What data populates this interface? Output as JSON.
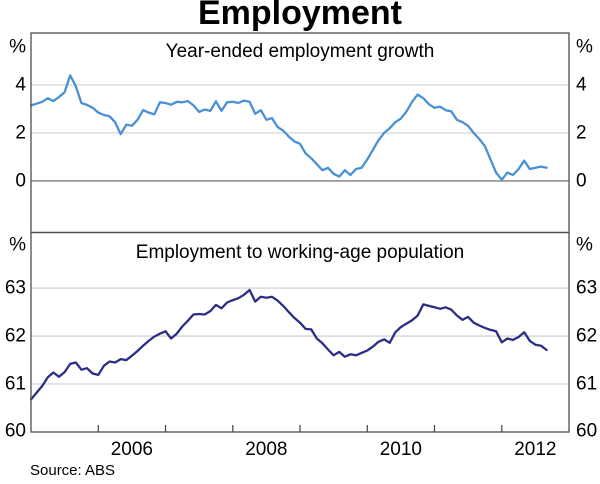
{
  "page": {
    "title": "Employment",
    "source": "Source: ABS"
  },
  "chart_data": {
    "type": "line",
    "title": "Employment",
    "x": {
      "frequency": "monthly",
      "start": "2005-01",
      "end": "2012-09",
      "axis_range_years": [
        2005,
        2013
      ],
      "year_tick_marks": [
        2006,
        2007,
        2008,
        2009,
        2010,
        2011,
        2012
      ],
      "year_labels": [
        "2006",
        "2008",
        "2010",
        "2012"
      ]
    },
    "colors": {
      "grid": "#c9c9c9",
      "frame": "#4f4f4f",
      "zero_line": "#7d7d7d"
    },
    "panels": [
      {
        "title": "Year-ended employment growth",
        "unit": "%",
        "ylim": [
          -2.15,
          6.17
        ],
        "yticks": [
          0,
          2,
          4
        ],
        "zero_line": true,
        "line_color": "#4a90d5",
        "values": [
          3.15,
          3.22,
          3.3,
          3.45,
          3.33,
          3.5,
          3.7,
          4.4,
          3.95,
          3.25,
          3.17,
          3.05,
          2.85,
          2.75,
          2.7,
          2.45,
          1.95,
          2.35,
          2.3,
          2.55,
          2.95,
          2.85,
          2.78,
          3.28,
          3.25,
          3.18,
          3.3,
          3.28,
          3.33,
          3.15,
          2.88,
          2.98,
          2.92,
          3.32,
          2.92,
          3.28,
          3.3,
          3.25,
          3.35,
          3.3,
          2.8,
          2.95,
          2.55,
          2.62,
          2.25,
          2.1,
          1.85,
          1.65,
          1.55,
          1.15,
          0.95,
          0.7,
          0.45,
          0.55,
          0.3,
          0.18,
          0.45,
          0.25,
          0.5,
          0.55,
          0.9,
          1.3,
          1.7,
          2.0,
          2.2,
          2.45,
          2.6,
          2.9,
          3.3,
          3.6,
          3.45,
          3.2,
          3.05,
          3.1,
          2.95,
          2.9,
          2.55,
          2.45,
          2.3,
          2.0,
          1.75,
          1.45,
          0.9,
          0.35,
          0.05,
          0.35,
          0.25,
          0.5,
          0.85,
          0.5,
          0.55,
          0.6,
          0.55
        ]
      },
      {
        "title": "Employment to working-age population",
        "unit": "%",
        "ylim": [
          60,
          64.16
        ],
        "yticks": [
          60,
          61,
          62,
          63
        ],
        "zero_line": false,
        "line_color": "#2b2e83",
        "values": [
          60.68,
          60.82,
          60.96,
          61.14,
          61.24,
          61.15,
          61.25,
          61.42,
          61.45,
          61.3,
          61.33,
          61.22,
          61.19,
          61.38,
          61.47,
          61.45,
          61.52,
          61.5,
          61.59,
          61.69,
          61.8,
          61.9,
          61.99,
          62.05,
          62.1,
          61.95,
          62.05,
          62.2,
          62.32,
          62.45,
          62.46,
          62.45,
          62.52,
          62.65,
          62.58,
          62.7,
          62.75,
          62.79,
          62.86,
          62.96,
          62.72,
          62.82,
          62.8,
          62.82,
          62.74,
          62.63,
          62.5,
          62.38,
          62.28,
          62.15,
          62.14,
          61.95,
          61.85,
          61.72,
          61.6,
          61.67,
          61.57,
          61.62,
          61.6,
          61.65,
          61.7,
          61.78,
          61.88,
          61.93,
          61.86,
          62.08,
          62.19,
          62.26,
          62.33,
          62.43,
          62.66,
          62.63,
          62.6,
          62.57,
          62.6,
          62.55,
          62.43,
          62.34,
          62.4,
          62.28,
          62.22,
          62.17,
          62.13,
          62.1,
          61.87,
          61.95,
          61.92,
          61.98,
          62.08,
          61.9,
          61.82,
          61.8,
          61.71
        ]
      }
    ]
  }
}
